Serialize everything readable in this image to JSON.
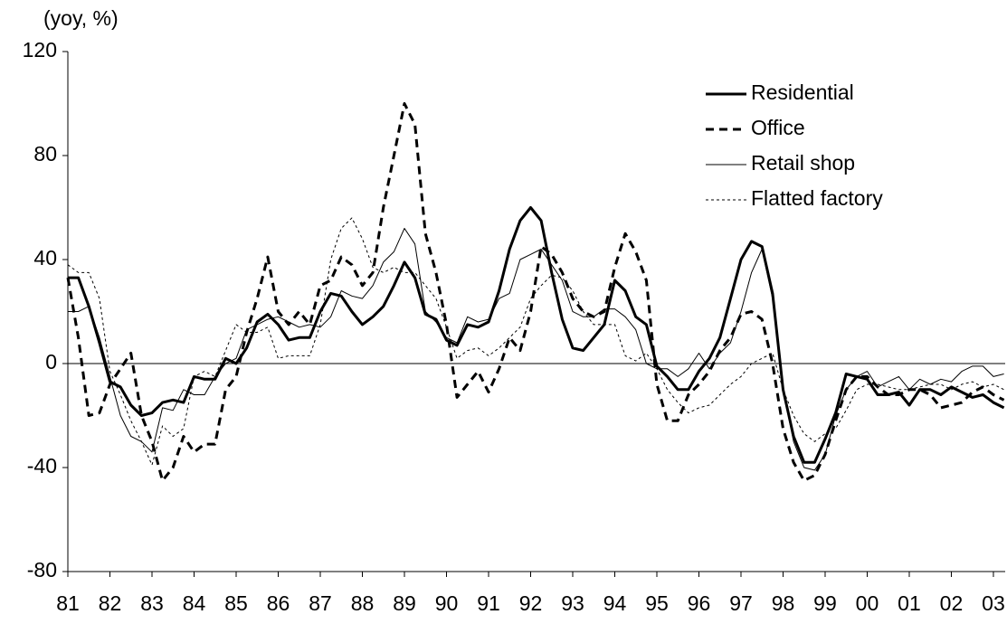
{
  "chart_data": {
    "type": "line",
    "y_label": "(yoy, %)",
    "x": [
      1981,
      1981.25,
      1981.5,
      1981.75,
      1982,
      1982.25,
      1982.5,
      1982.75,
      1983,
      1983.25,
      1983.5,
      1983.75,
      1984,
      1984.25,
      1984.5,
      1984.75,
      1985,
      1985.25,
      1985.5,
      1985.75,
      1986,
      1986.25,
      1986.5,
      1986.75,
      1987,
      1987.25,
      1987.5,
      1987.75,
      1988,
      1988.25,
      1988.5,
      1988.75,
      1989,
      1989.25,
      1989.5,
      1989.75,
      1990,
      1990.25,
      1990.5,
      1990.75,
      1991,
      1991.25,
      1991.5,
      1991.75,
      1992,
      1992.25,
      1992.5,
      1992.75,
      1993,
      1993.25,
      1993.5,
      1993.75,
      1994,
      1994.25,
      1994.5,
      1994.75,
      1995,
      1995.25,
      1995.5,
      1995.75,
      1996,
      1996.25,
      1996.5,
      1996.75,
      1997,
      1997.25,
      1997.5,
      1997.75,
      1998,
      1998.25,
      1998.5,
      1998.75,
      1999,
      1999.25,
      1999.5,
      1999.75,
      2000,
      2000.25,
      2000.5,
      2000.75,
      2001,
      2001.25,
      2001.5,
      2001.75,
      2002,
      2002.25,
      2002.5,
      2002.75,
      2003,
      2003.25
    ],
    "series": [
      {
        "name": "Residential",
        "color": "#000000",
        "dash": "solid",
        "width": 3,
        "values": [
          33,
          33,
          22,
          8,
          -7,
          -9,
          -16,
          -20,
          -19,
          -15,
          -14,
          -15,
          -5,
          -6,
          -6,
          2,
          0,
          6,
          16,
          19,
          15,
          9,
          10,
          10,
          20,
          27,
          26,
          20,
          15,
          18,
          22,
          30,
          39,
          33,
          19,
          17,
          9,
          7,
          15,
          14,
          16,
          28,
          44,
          55,
          60,
          55,
          35,
          17,
          6,
          5,
          10,
          15,
          32,
          28,
          18,
          15,
          -1,
          -5,
          -10,
          -10,
          -3,
          2,
          10,
          25,
          40,
          47,
          45,
          27,
          -10,
          -28,
          -38,
          -38,
          -29,
          -19,
          -4,
          -5,
          -6,
          -12,
          -12,
          -11,
          -16,
          -10,
          -10,
          -12,
          -9,
          -11,
          -13,
          -12,
          -15,
          -17
        ]
      },
      {
        "name": "Office",
        "color": "#000000",
        "dash": "dashed",
        "width": 3,
        "values": [
          33,
          10,
          -20,
          -19,
          -8,
          -2,
          4,
          -20,
          -30,
          -45,
          -40,
          -28,
          -34,
          -31,
          -31,
          -10,
          -5,
          12,
          25,
          41,
          20,
          15,
          20,
          15,
          30,
          32,
          41,
          38,
          30,
          35,
          60,
          80,
          100,
          92,
          50,
          35,
          15,
          -13,
          -8,
          -3,
          -11,
          -2,
          10,
          5,
          20,
          45,
          42,
          35,
          25,
          20,
          18,
          20,
          37,
          50,
          43,
          32,
          -8,
          -22,
          -22,
          -12,
          -8,
          -3,
          5,
          10,
          19,
          20,
          17,
          0,
          -25,
          -38,
          -45,
          -43,
          -35,
          -22,
          -10,
          -5,
          -5,
          -9,
          -12,
          -12,
          -10,
          -10,
          -12,
          -17,
          -16,
          -15,
          -11,
          -9,
          -12,
          -14
        ]
      },
      {
        "name": "Retail shop",
        "color": "#000000",
        "dash": "solid",
        "width": 1,
        "values": [
          20,
          20,
          22,
          10,
          -5,
          -20,
          -28,
          -30,
          -34,
          -17,
          -18,
          -10,
          -12,
          -12,
          -5,
          0,
          2,
          13,
          15,
          17,
          18,
          16,
          14,
          15,
          14,
          18,
          28,
          26,
          25,
          30,
          39,
          43,
          52,
          46,
          20,
          16,
          10,
          8,
          18,
          16,
          17,
          25,
          27,
          40,
          42,
          44,
          38,
          32,
          20,
          18,
          18,
          21,
          21,
          18,
          13,
          0,
          -2,
          -2,
          -5,
          -2,
          4,
          -2,
          4,
          8,
          20,
          35,
          44,
          25,
          -10,
          -30,
          -40,
          -41,
          -35,
          -20,
          -10,
          -5,
          -3,
          -9,
          -7,
          -5,
          -10,
          -6,
          -8,
          -6,
          -7,
          -3,
          -1,
          -1,
          -5,
          -4
        ]
      },
      {
        "name": "Flatted factory",
        "color": "#000000",
        "dash": "dotted",
        "width": 1,
        "values": [
          38,
          35,
          35,
          25,
          -3,
          -12,
          -22,
          -30,
          -39,
          -24,
          -28,
          -25,
          -5,
          -3,
          -5,
          5,
          15,
          12,
          12,
          14,
          2,
          3,
          3,
          3,
          15,
          40,
          52,
          56,
          48,
          37,
          35,
          37,
          35,
          35,
          30,
          25,
          14,
          2,
          5,
          6,
          3,
          6,
          10,
          14,
          25,
          30,
          34,
          33,
          28,
          20,
          15,
          15,
          15,
          3,
          1,
          4,
          -2,
          -10,
          -15,
          -19,
          -17,
          -16,
          -12,
          -8,
          -5,
          0,
          2,
          4,
          -10,
          -20,
          -27,
          -30,
          -27,
          -25,
          -18,
          -10,
          -8,
          -8,
          -9,
          -10,
          -10,
          -9,
          -8,
          -8,
          -10,
          -8,
          -7,
          -9,
          -8,
          -10
        ]
      }
    ],
    "xlim": [
      1981,
      2003.28
    ],
    "xticks": [
      {
        "value": 1981,
        "label": "81"
      },
      {
        "value": 1982,
        "label": "82"
      },
      {
        "value": 1983,
        "label": "83"
      },
      {
        "value": 1984,
        "label": "84"
      },
      {
        "value": 1985,
        "label": "85"
      },
      {
        "value": 1986,
        "label": "86"
      },
      {
        "value": 1987,
        "label": "87"
      },
      {
        "value": 1988,
        "label": "88"
      },
      {
        "value": 1989,
        "label": "89"
      },
      {
        "value": 1990,
        "label": "90"
      },
      {
        "value": 1991,
        "label": "91"
      },
      {
        "value": 1992,
        "label": "92"
      },
      {
        "value": 1993,
        "label": "93"
      },
      {
        "value": 1994,
        "label": "94"
      },
      {
        "value": 1995,
        "label": "95"
      },
      {
        "value": 1996,
        "label": "96"
      },
      {
        "value": 1997,
        "label": "97"
      },
      {
        "value": 1998,
        "label": "98"
      },
      {
        "value": 1999,
        "label": "99"
      },
      {
        "value": 2000,
        "label": "00"
      },
      {
        "value": 2001,
        "label": "01"
      },
      {
        "value": 2002,
        "label": "02"
      },
      {
        "value": 2003,
        "label": "03"
      }
    ],
    "ylim": [
      -80,
      120
    ],
    "yticks": [
      -80,
      -40,
      0,
      40,
      80,
      120
    ],
    "grid": false,
    "legend": "upper right"
  }
}
